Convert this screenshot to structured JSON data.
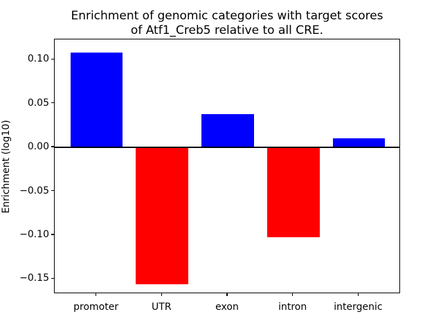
{
  "chart_data": {
    "type": "bar",
    "title": "Enrichment of genomic categories with target scores\nof Atf1_Creb5 relative to all CRE.",
    "title_lines": [
      "Enrichment of genomic categories with target scores",
      "of Atf1_Creb5 relative to all CRE."
    ],
    "xlabel": "",
    "ylabel": "Enrichment (log10)",
    "categories": [
      "promoter",
      "UTR",
      "exon",
      "intron",
      "intergenic"
    ],
    "values": [
      0.108,
      -0.156,
      0.038,
      -0.102,
      0.01
    ],
    "bar_colors": [
      "#0000ff",
      "#ff0000",
      "#0000ff",
      "#ff0000",
      "#0000ff"
    ],
    "positive_color": "#0000ff",
    "negative_color": "#ff0000",
    "yticks": [
      0.1,
      0.05,
      0.0,
      -0.05,
      -0.1,
      -0.15
    ],
    "ytick_labels": [
      "0.10",
      "0.05",
      "0.00",
      "−0.05",
      "−0.10",
      "−0.15"
    ],
    "ylim": [
      -0.167,
      0.123
    ],
    "xlim": [
      -0.64,
      4.64
    ],
    "bar_width": 0.8,
    "zero_line": true,
    "grid": false,
    "legend": false,
    "axis_color": "#000000",
    "background_color": "#ffffff"
  }
}
